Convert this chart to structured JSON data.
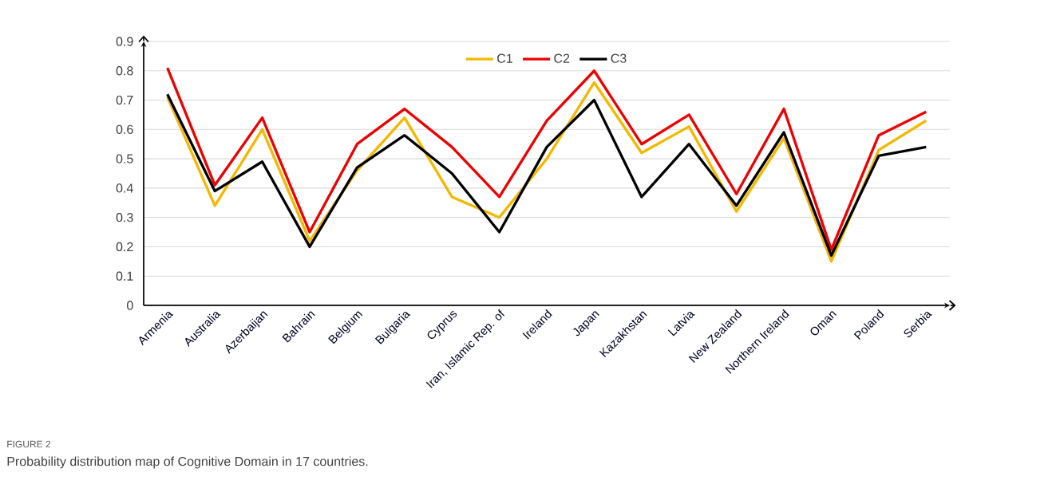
{
  "chart_data": {
    "type": "line",
    "annotations": [
      "FIGURE 2",
      "Probability distribution map of Cognitive Domain in 17 countries."
    ],
    "categories": [
      "Armenia",
      "Australia",
      "Azerbaijan",
      "Bahrain",
      "Belgium",
      "Bulgaria",
      "Cyprus",
      "Iran, Islamic Rep. of",
      "Ireland",
      "Japan",
      "Kazakhstan",
      "Latvia",
      "New Zealand",
      "Northern Ireland",
      "Oman",
      "Poland",
      "Serbia"
    ],
    "series": [
      {
        "name": "C1",
        "color": "#f5b800",
        "values": [
          0.71,
          0.34,
          0.6,
          0.22,
          0.46,
          0.64,
          0.37,
          0.3,
          0.5,
          0.76,
          0.52,
          0.61,
          0.32,
          0.57,
          0.15,
          0.53,
          0.63
        ]
      },
      {
        "name": "C2",
        "color": "#ee0000",
        "values": [
          0.81,
          0.41,
          0.64,
          0.25,
          0.55,
          0.67,
          0.54,
          0.37,
          0.63,
          0.8,
          0.55,
          0.65,
          0.38,
          0.67,
          0.19,
          0.58,
          0.66
        ]
      },
      {
        "name": "C3",
        "color": "#000000",
        "values": [
          0.72,
          0.39,
          0.49,
          0.2,
          0.47,
          0.58,
          0.45,
          0.25,
          0.54,
          0.7,
          0.37,
          0.55,
          0.34,
          0.59,
          0.17,
          0.51,
          0.54
        ]
      }
    ],
    "ylim": [
      0,
      0.9
    ],
    "yticks": [
      0,
      0.1,
      0.2,
      0.3,
      0.4,
      0.5,
      0.6,
      0.7,
      0.8,
      0.9
    ],
    "grid": "y",
    "legend": "top",
    "marker": "none",
    "line_style": "solid"
  }
}
